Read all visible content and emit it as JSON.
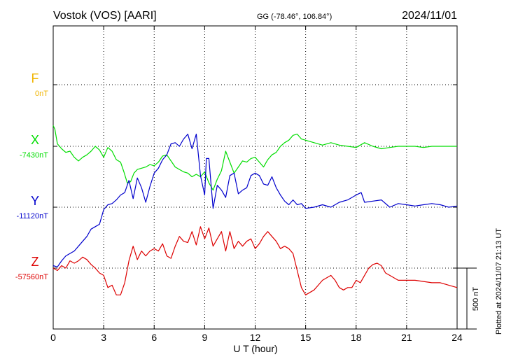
{
  "header": {
    "station": "Vostok (VOS)  [AARI]",
    "coords": "GG (-78.46°, 106.84°)",
    "date": "2024/11/01"
  },
  "footer": {
    "plotted": "Plotted at 2024/11/07 21:13 UT"
  },
  "scale_bar": {
    "label": "500 nT",
    "value_nT": 500
  },
  "chart_data": {
    "type": "line",
    "title": "Vostok (VOS)  [AARI]",
    "xlabel": "U T (hour)",
    "xlim": [
      0,
      24
    ],
    "xticks": [
      0,
      3,
      6,
      9,
      12,
      15,
      18,
      21,
      24
    ],
    "tick_labels": [
      "0",
      "3",
      "6",
      "9",
      "12",
      "15",
      "18",
      "21",
      "24"
    ],
    "grid": true,
    "units": "nT",
    "series": [
      {
        "name": "F",
        "color": "#f0b400",
        "baseline_label": "0nT",
        "values": []
      },
      {
        "name": "X",
        "color": "#00dd00",
        "baseline_label": "-7430nT",
        "x": [
          0,
          0.1,
          0.25,
          0.5,
          0.75,
          1,
          1.25,
          1.5,
          1.75,
          2,
          2.25,
          2.5,
          2.75,
          3,
          3.25,
          3.5,
          3.75,
          4,
          4.2,
          4.4,
          4.6,
          4.8,
          5,
          5.25,
          5.5,
          5.75,
          6,
          6.25,
          6.5,
          6.75,
          7,
          7.25,
          7.5,
          7.75,
          8,
          8.25,
          8.5,
          8.75,
          9,
          9.25,
          9.5,
          9.75,
          10,
          10.25,
          10.5,
          10.75,
          11,
          11.25,
          11.5,
          11.75,
          12,
          12.25,
          12.5,
          12.75,
          13,
          13.25,
          13.5,
          13.75,
          14,
          14.25,
          14.5,
          14.75,
          15,
          15.5,
          16,
          16.5,
          17,
          17.5,
          18,
          18.5,
          19,
          19.5,
          20,
          20.5,
          21,
          21.5,
          22,
          22.5,
          23,
          23.5,
          24
        ],
        "values": [
          -7260,
          -7290,
          -7410,
          -7450,
          -7480,
          -7470,
          -7520,
          -7550,
          -7520,
          -7500,
          -7470,
          -7430,
          -7460,
          -7520,
          -7440,
          -7470,
          -7540,
          -7560,
          -7640,
          -7730,
          -7720,
          -7650,
          -7620,
          -7610,
          -7600,
          -7580,
          -7590,
          -7560,
          -7510,
          -7500,
          -7550,
          -7600,
          -7620,
          -7640,
          -7650,
          -7680,
          -7660,
          -7680,
          -7640,
          -7730,
          -7790,
          -7700,
          -7630,
          -7470,
          -7560,
          -7650,
          -7600,
          -7550,
          -7560,
          -7530,
          -7520,
          -7560,
          -7600,
          -7540,
          -7500,
          -7480,
          -7430,
          -7400,
          -7380,
          -7340,
          -7330,
          -7370,
          -7380,
          -7400,
          -7420,
          -7400,
          -7420,
          -7430,
          -7440,
          -7400,
          -7430,
          -7450,
          -7440,
          -7430,
          -7430,
          -7430,
          -7440,
          -7430,
          -7430,
          -7430,
          -7430
        ]
      },
      {
        "name": "Y",
        "color": "#0000cc",
        "baseline_label": "-11120nT",
        "x": [
          0,
          0.25,
          0.5,
          0.75,
          1,
          1.25,
          1.5,
          1.75,
          2,
          2.25,
          2.5,
          2.75,
          3,
          3.25,
          3.5,
          3.75,
          4,
          4.25,
          4.5,
          4.75,
          5,
          5.25,
          5.5,
          5.75,
          6,
          6.25,
          6.5,
          6.75,
          7,
          7.25,
          7.5,
          7.75,
          8,
          8.25,
          8.5,
          8.75,
          9,
          9.1,
          9.25,
          9.5,
          9.75,
          10,
          10.25,
          10.5,
          10.75,
          11,
          11.25,
          11.5,
          11.75,
          12,
          12.25,
          12.5,
          12.75,
          13,
          13.25,
          13.5,
          13.75,
          14,
          14.25,
          14.5,
          14.75,
          15,
          15.5,
          16,
          16.5,
          17,
          17.5,
          18,
          18.3,
          18.5,
          19,
          19.5,
          20,
          20.5,
          21,
          21.5,
          22,
          22.5,
          23,
          23.5,
          24
        ],
        "values": [
          -11600,
          -11610,
          -11560,
          -11520,
          -11500,
          -11480,
          -11440,
          -11400,
          -11360,
          -11300,
          -11280,
          -11260,
          -11140,
          -11100,
          -11090,
          -11060,
          -11020,
          -11000,
          -10900,
          -11050,
          -10880,
          -10960,
          -11080,
          -10950,
          -10840,
          -10800,
          -10730,
          -10690,
          -10600,
          -10590,
          -10620,
          -10560,
          -10520,
          -10640,
          -10520,
          -10860,
          -11020,
          -10720,
          -10720,
          -11130,
          -10940,
          -10980,
          -11040,
          -10860,
          -10840,
          -11010,
          -10980,
          -10960,
          -10860,
          -10840,
          -10860,
          -10930,
          -10940,
          -10870,
          -10960,
          -11020,
          -11070,
          -11100,
          -11060,
          -11100,
          -11090,
          -11130,
          -11120,
          -11100,
          -11120,
          -11080,
          -11060,
          -11020,
          -11000,
          -11080,
          -11070,
          -11060,
          -11120,
          -11090,
          -11100,
          -11110,
          -11100,
          -11090,
          -11100,
          -11120,
          -11110
        ]
      },
      {
        "name": "Z",
        "color": "#dd0000",
        "baseline_label": "-57560nT",
        "x": [
          0,
          0.25,
          0.5,
          0.75,
          1,
          1.25,
          1.5,
          1.75,
          2,
          2.25,
          2.5,
          2.75,
          3,
          3.25,
          3.5,
          3.75,
          4,
          4.25,
          4.5,
          4.75,
          5,
          5.25,
          5.5,
          5.75,
          6,
          6.25,
          6.5,
          6.75,
          7,
          7.25,
          7.5,
          7.75,
          8,
          8.25,
          8.5,
          8.75,
          9,
          9.25,
          9.5,
          9.75,
          10,
          10.25,
          10.5,
          10.75,
          11,
          11.25,
          11.5,
          11.75,
          12,
          12.25,
          12.5,
          12.75,
          13,
          13.25,
          13.5,
          13.75,
          14,
          14.25,
          14.5,
          14.75,
          15,
          15.25,
          15.5,
          15.75,
          16,
          16.25,
          16.5,
          16.75,
          17,
          17.25,
          17.5,
          17.75,
          18,
          18.25,
          18.5,
          18.75,
          19,
          19.25,
          19.5,
          19.75,
          20,
          20.5,
          21,
          21.5,
          22,
          22.5,
          23,
          23.5,
          24
        ],
        "values": [
          -57560,
          -57580,
          -57540,
          -57560,
          -57500,
          -57520,
          -57500,
          -57470,
          -57490,
          -57530,
          -57560,
          -57600,
          -57620,
          -57720,
          -57700,
          -57780,
          -57780,
          -57680,
          -57500,
          -57380,
          -57490,
          -57420,
          -57460,
          -57420,
          -57400,
          -57420,
          -57360,
          -57460,
          -57480,
          -57380,
          -57300,
          -57340,
          -57350,
          -57260,
          -57370,
          -57220,
          -57320,
          -57230,
          -57380,
          -57320,
          -57260,
          -57420,
          -57260,
          -57400,
          -57340,
          -57380,
          -57340,
          -57320,
          -57400,
          -57360,
          -57300,
          -57260,
          -57300,
          -57340,
          -57400,
          -57380,
          -57400,
          -57440,
          -57580,
          -57720,
          -57780,
          -57760,
          -57740,
          -57700,
          -57660,
          -57640,
          -57620,
          -57660,
          -57720,
          -57740,
          -57720,
          -57720,
          -57660,
          -57680,
          -57620,
          -57560,
          -57530,
          -57520,
          -57540,
          -57600,
          -57620,
          -57660,
          -57660,
          -57660,
          -57670,
          -57680,
          -57680,
          -57700,
          -57720
        ]
      }
    ]
  }
}
